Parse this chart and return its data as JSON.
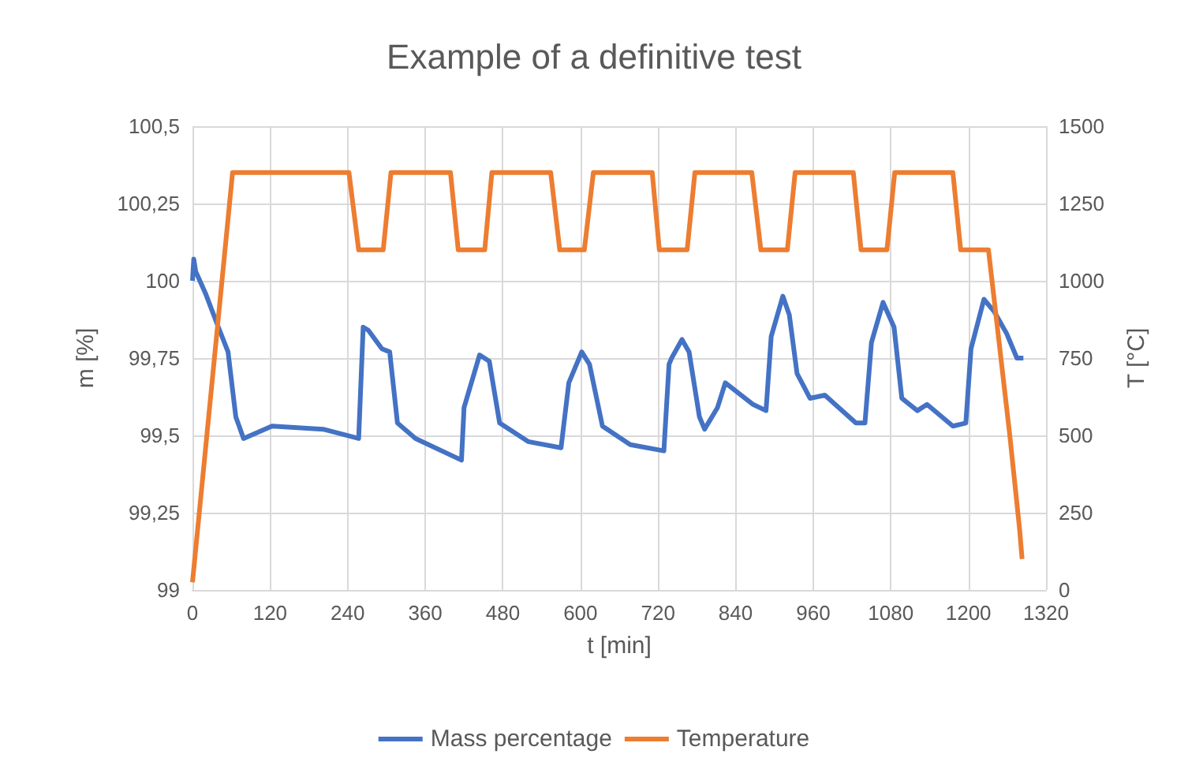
{
  "chart_data": {
    "type": "line",
    "title": "Example of a definitive test",
    "xlabel": "t [min]",
    "ylabel": "m [%]",
    "y2label": "T [°C]",
    "xlim": [
      0,
      1320
    ],
    "xticks": [
      0,
      120,
      240,
      360,
      480,
      600,
      720,
      840,
      960,
      1080,
      1200,
      1320
    ],
    "ylim": [
      99,
      100.5
    ],
    "yticks": [
      99,
      {
        "value": 99.25,
        "label": "99,25"
      },
      {
        "value": 99.5,
        "label": "99,5"
      },
      {
        "value": 99.75,
        "label": "99,75"
      },
      100,
      {
        "value": 100.25,
        "label": "100,25"
      },
      {
        "value": 100.5,
        "label": "100,5"
      }
    ],
    "y2lim": [
      0,
      1500
    ],
    "y2ticks": [
      0,
      250,
      500,
      750,
      1000,
      1250,
      1500
    ],
    "grid": true,
    "legend": "bottom",
    "marker": "none",
    "line_style": "solid",
    "series": [
      {
        "name": "Mass percentage",
        "color": "#4472c4",
        "x": [
          0,
          2,
          5,
          20,
          40,
          55,
          67,
          79,
          123,
          202,
          257,
          264,
          272,
          293,
          305,
          317,
          345,
          416,
          420,
          444,
          459,
          475,
          519,
          570,
          582,
          602,
          614,
          634,
          677,
          729,
          737,
          741,
          757,
          768,
          784,
          792,
          812,
          824,
          867,
          887,
          895,
          913,
          923,
          935,
          955,
          978,
          1026,
          1040,
          1050,
          1068,
          1085,
          1097,
          1121,
          1136,
          1176,
          1196,
          1204,
          1224,
          1240,
          1259,
          1275,
          1285
        ],
        "values": [
          100,
          100.07,
          100.03,
          99.96,
          99.85,
          99.77,
          99.56,
          99.49,
          99.53,
          99.52,
          99.49,
          99.85,
          99.84,
          99.78,
          99.77,
          99.54,
          99.49,
          99.42,
          99.59,
          99.76,
          99.74,
          99.54,
          99.48,
          99.46,
          99.67,
          99.77,
          99.73,
          99.53,
          99.47,
          99.45,
          99.73,
          99.75,
          99.81,
          99.77,
          99.56,
          99.52,
          99.59,
          99.67,
          99.6,
          99.58,
          99.82,
          99.95,
          99.89,
          99.7,
          99.62,
          99.63,
          99.54,
          99.54,
          99.8,
          99.93,
          99.85,
          99.62,
          99.58,
          99.6,
          99.53,
          99.54,
          99.78,
          99.94,
          99.9,
          99.83,
          99.75,
          99.75
        ]
      },
      {
        "name": "Temperature",
        "color": "#ed7d31",
        "axis": "y2",
        "x": [
          0,
          62,
          242,
          257,
          295,
          307,
          399,
          411,
          452,
          463,
          554,
          568,
          606,
          620,
          711,
          722,
          765,
          777,
          865,
          879,
          920,
          932,
          1022,
          1034,
          1074,
          1086,
          1176,
          1188,
          1231,
          1264,
          1279,
          1283
        ],
        "values": [
          25,
          1350,
          1350,
          1100,
          1100,
          1350,
          1350,
          1100,
          1100,
          1350,
          1350,
          1100,
          1100,
          1350,
          1350,
          1100,
          1100,
          1350,
          1350,
          1100,
          1100,
          1350,
          1350,
          1100,
          1100,
          1350,
          1350,
          1100,
          1100,
          500,
          200,
          100
        ]
      }
    ]
  }
}
